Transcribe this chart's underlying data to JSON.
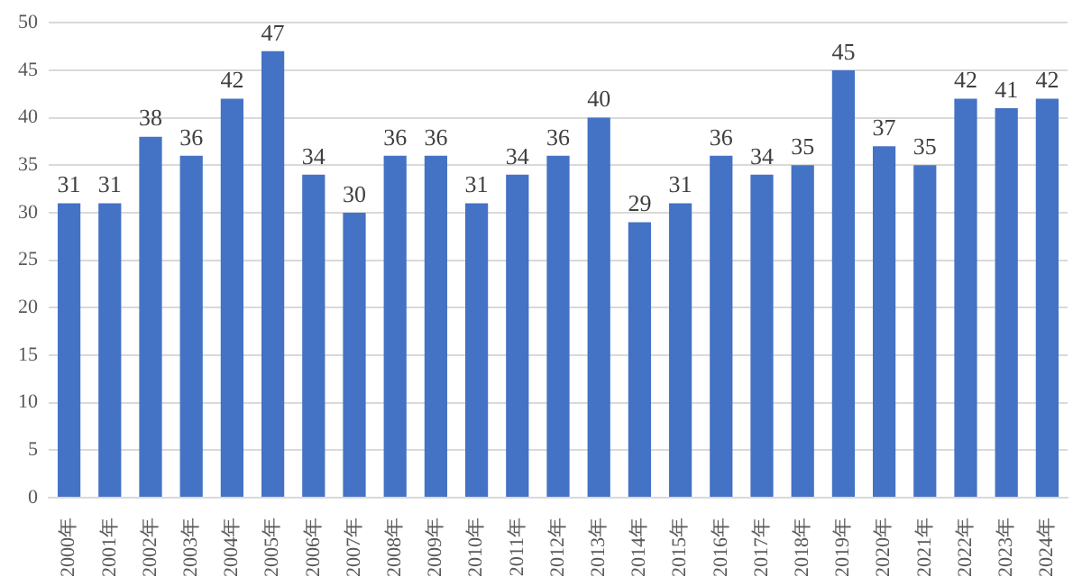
{
  "chart_data": {
    "type": "bar",
    "categories": [
      "2000年",
      "2001年",
      "2002年",
      "2003年",
      "2004年",
      "2005年",
      "2006年",
      "2007年",
      "2008年",
      "2009年",
      "2010年",
      "2011年",
      "2012年",
      "2013年",
      "2014年",
      "2015年",
      "2016年",
      "2017年",
      "2018年",
      "2019年",
      "2020年",
      "2021年",
      "2022年",
      "2023年",
      "2024年"
    ],
    "values": [
      31,
      31,
      38,
      36,
      42,
      47,
      34,
      30,
      36,
      36,
      31,
      34,
      36,
      40,
      29,
      31,
      36,
      34,
      35,
      45,
      37,
      35,
      42,
      41,
      42
    ],
    "color": "#4472c4",
    "ylim": [
      0,
      50
    ],
    "yticks": [
      0,
      5,
      10,
      15,
      20,
      25,
      30,
      35,
      40,
      45,
      50
    ],
    "grid": "y",
    "data_labels": true
  }
}
